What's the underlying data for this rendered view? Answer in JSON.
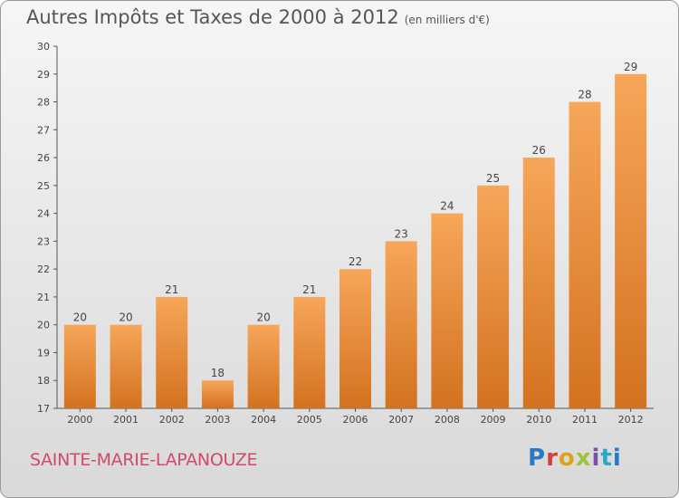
{
  "header": {
    "title": "Autres Impôts et Taxes de 2000 à 2012",
    "subtitle": "(en milliers d'€)"
  },
  "footer": {
    "commune": "SAINTE-MARIE-LAPANOUZE",
    "logo_text": "Proxiti"
  },
  "colors": {
    "bar_light": "#f7a65a",
    "bar_dark": "#d3721f",
    "title": "#555555",
    "commune": "#d2496a"
  },
  "chart_data": {
    "type": "bar",
    "title": "Autres Impôts et Taxes de 2000 à 2012",
    "subtitle": "(en milliers d'€)",
    "xlabel": "",
    "ylabel": "",
    "categories": [
      "2000",
      "2001",
      "2002",
      "2003",
      "2004",
      "2005",
      "2006",
      "2007",
      "2008",
      "2009",
      "2010",
      "2011",
      "2012"
    ],
    "values": [
      20,
      20,
      21,
      18,
      20,
      21,
      22,
      23,
      24,
      25,
      26,
      28,
      29
    ],
    "ylim": [
      17,
      30
    ],
    "yticks": [
      17,
      18,
      19,
      20,
      21,
      22,
      23,
      24,
      25,
      26,
      27,
      28,
      29,
      30
    ],
    "grid": false,
    "data_labels": true
  }
}
